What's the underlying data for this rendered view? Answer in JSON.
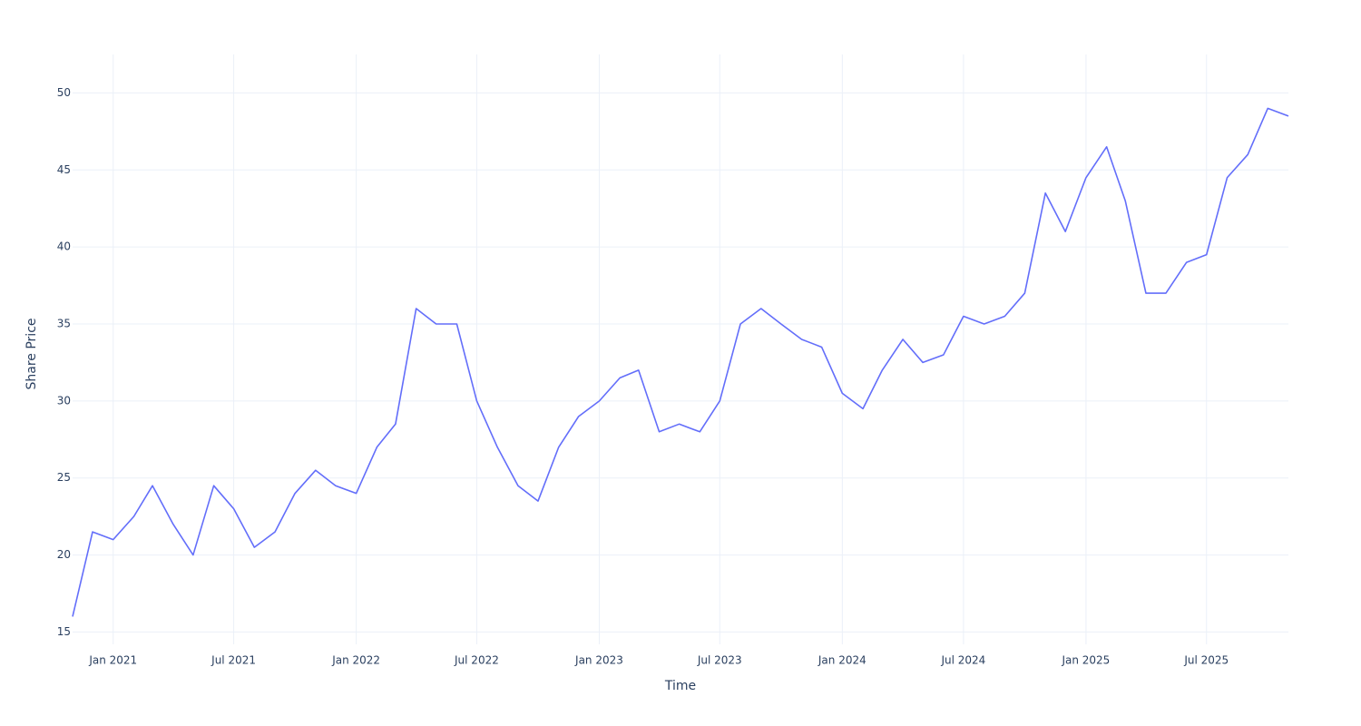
{
  "chart_data": {
    "type": "line",
    "x_label": "Time",
    "y_label": "Share Price",
    "x": [
      "2020-11",
      "2020-12",
      "2021-01",
      "2021-02",
      "2021-03",
      "2021-04",
      "2021-05",
      "2021-06",
      "2021-07",
      "2021-08",
      "2021-09",
      "2021-10",
      "2021-11",
      "2021-12",
      "2022-01",
      "2022-02",
      "2022-03",
      "2022-04",
      "2022-05",
      "2022-06",
      "2022-07",
      "2022-08",
      "2022-09",
      "2022-10",
      "2022-11",
      "2022-12",
      "2023-01",
      "2023-02",
      "2023-03",
      "2023-04",
      "2023-05",
      "2023-06",
      "2023-07",
      "2023-08",
      "2023-09",
      "2023-10",
      "2023-11",
      "2023-12",
      "2024-01",
      "2024-02",
      "2024-03",
      "2024-04",
      "2024-05",
      "2024-06",
      "2024-07",
      "2024-08",
      "2024-09",
      "2024-10",
      "2024-11",
      "2024-12",
      "2025-01",
      "2025-02",
      "2025-03",
      "2025-04",
      "2025-05",
      "2025-06",
      "2025-07",
      "2025-08",
      "2025-09",
      "2025-10",
      "2025-11"
    ],
    "series": [
      {
        "color": "#636efa",
        "values": [
          16,
          21.5,
          21,
          22.5,
          24.5,
          22,
          20,
          24.5,
          23,
          20.5,
          21.5,
          24,
          25.5,
          24.5,
          24,
          27,
          28.5,
          36,
          35,
          35,
          30,
          27,
          24.5,
          23.5,
          27,
          29,
          30,
          31.5,
          32,
          28,
          28.5,
          28,
          30,
          35,
          36,
          35,
          34,
          33.5,
          30.5,
          29.5,
          32,
          34,
          32.5,
          33,
          35.5,
          35,
          35.5,
          37,
          43.5,
          41,
          44.5,
          46.5,
          43,
          37,
          37,
          39,
          39.5,
          44.5,
          46,
          49,
          48.5
        ]
      }
    ],
    "xlim": [
      "2020-11",
      "2025-11"
    ],
    "xticks": [
      {
        "value": "2021-01",
        "label": "Jan 2021"
      },
      {
        "value": "2021-07",
        "label": "Jul 2021"
      },
      {
        "value": "2022-01",
        "label": "Jan 2022"
      },
      {
        "value": "2022-07",
        "label": "Jul 2022"
      },
      {
        "value": "2023-01",
        "label": "Jan 2023"
      },
      {
        "value": "2023-07",
        "label": "Jul 2023"
      },
      {
        "value": "2024-01",
        "label": "Jan 2024"
      },
      {
        "value": "2024-07",
        "label": "Jul 2024"
      },
      {
        "value": "2025-01",
        "label": "Jan 2025"
      },
      {
        "value": "2025-07",
        "label": "Jul 2025"
      }
    ],
    "ylim": [
      14.2,
      52.5
    ],
    "yticks": [
      15,
      20,
      25,
      30,
      35,
      40,
      45,
      50
    ],
    "grid": true
  }
}
